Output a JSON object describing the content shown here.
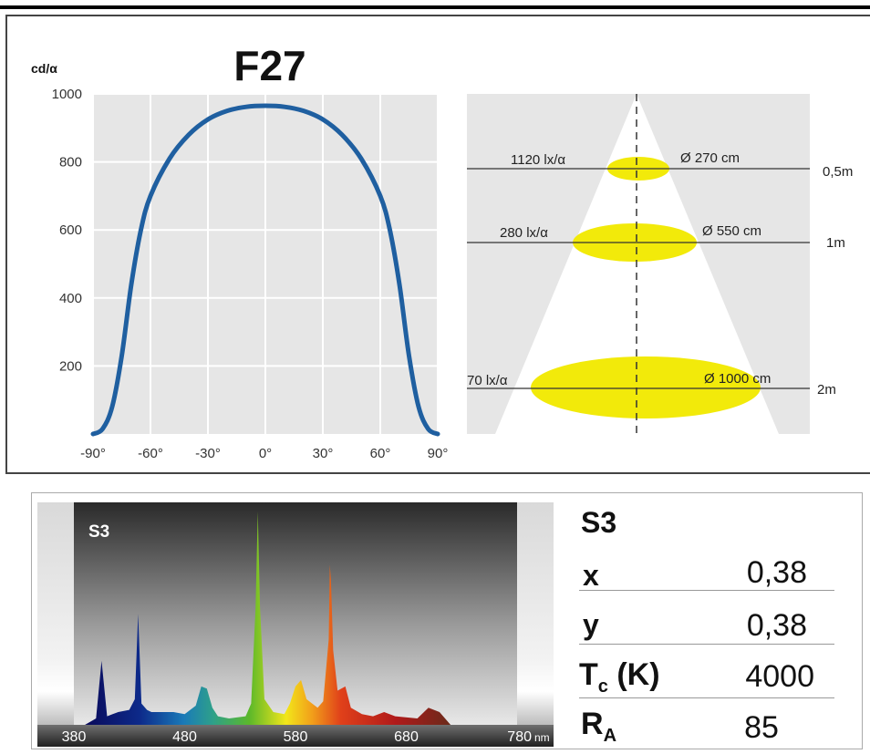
{
  "header": {
    "model": "F27"
  },
  "chart_data": [
    {
      "type": "line",
      "title": "F27",
      "ylabel": "cd/α",
      "xlabel": "",
      "x_tick_labels": [
        "-90°",
        "-60°",
        "-30°",
        "0°",
        "30°",
        "60°",
        "90°"
      ],
      "y_tick_labels": [
        "200",
        "400",
        "600",
        "800",
        "1000"
      ],
      "xlim": [
        -90,
        90
      ],
      "ylim": [
        0,
        1000
      ],
      "grid": true,
      "series": [
        {
          "color": "#1f5fa0",
          "x": [
            -90,
            -85,
            -80,
            -75,
            -70,
            -65,
            -60,
            -50,
            -40,
            -30,
            -20,
            -10,
            0,
            10,
            20,
            30,
            40,
            50,
            60,
            65,
            70,
            75,
            80,
            85,
            90
          ],
          "y": [
            0,
            15,
            80,
            230,
            440,
            600,
            700,
            810,
            880,
            925,
            950,
            962,
            965,
            962,
            950,
            925,
            880,
            810,
            700,
            600,
            440,
            230,
            80,
            15,
            0
          ]
        }
      ]
    },
    {
      "type": "table",
      "rows": [
        {
          "illuminance": "1120 lx/α",
          "diameter": "Ø 270 cm",
          "distance": "0,5m"
        },
        {
          "illuminance": "280 lx/α",
          "diameter": "Ø 550 cm",
          "distance": "1m"
        },
        {
          "illuminance": "70 lx/α",
          "diameter": "Ø 1000 cm",
          "distance": "2m"
        }
      ]
    },
    {
      "type": "area",
      "title": "S3",
      "x_tick_labels": [
        "380",
        "480",
        "580",
        "680",
        "780"
      ],
      "x_unit": "nm",
      "xlim": [
        380,
        780
      ],
      "ylim": [
        0,
        1
      ],
      "x": [
        390,
        400,
        405,
        410,
        415,
        420,
        430,
        435,
        438,
        441,
        446,
        450,
        470,
        480,
        490,
        495,
        500,
        505,
        510,
        520,
        535,
        540,
        544,
        546,
        548,
        552,
        560,
        570,
        575,
        580,
        585,
        590,
        595,
        600,
        605,
        610,
        611,
        612,
        614,
        618,
        625,
        630,
        640,
        650,
        660,
        670,
        690,
        700,
        710,
        720
      ],
      "y": [
        0,
        0.03,
        0.3,
        0.04,
        0.05,
        0.06,
        0.07,
        0.12,
        0.52,
        0.1,
        0.07,
        0.06,
        0.06,
        0.05,
        0.09,
        0.18,
        0.17,
        0.08,
        0.04,
        0.03,
        0.04,
        0.1,
        0.55,
        1.0,
        0.55,
        0.12,
        0.06,
        0.05,
        0.1,
        0.18,
        0.21,
        0.12,
        0.1,
        0.08,
        0.11,
        0.4,
        0.75,
        0.68,
        0.35,
        0.16,
        0.18,
        0.08,
        0.05,
        0.04,
        0.06,
        0.04,
        0.03,
        0.08,
        0.06,
        0
      ]
    }
  ],
  "spectrum_card": {
    "title": "S3",
    "rows": [
      {
        "label": "x",
        "sub": "",
        "value": "0,38"
      },
      {
        "label": "y",
        "sub": "",
        "value": "0,38"
      },
      {
        "label": "T",
        "sub": "c",
        "suffix": " (K)",
        "value": "4000"
      },
      {
        "label": "R",
        "sub": "A",
        "value": "85"
      }
    ]
  },
  "colors": {
    "curve": "#1f5fa0",
    "beam_ellipse": "#f2ea0a",
    "panel_bg": "#e6e6e6"
  }
}
